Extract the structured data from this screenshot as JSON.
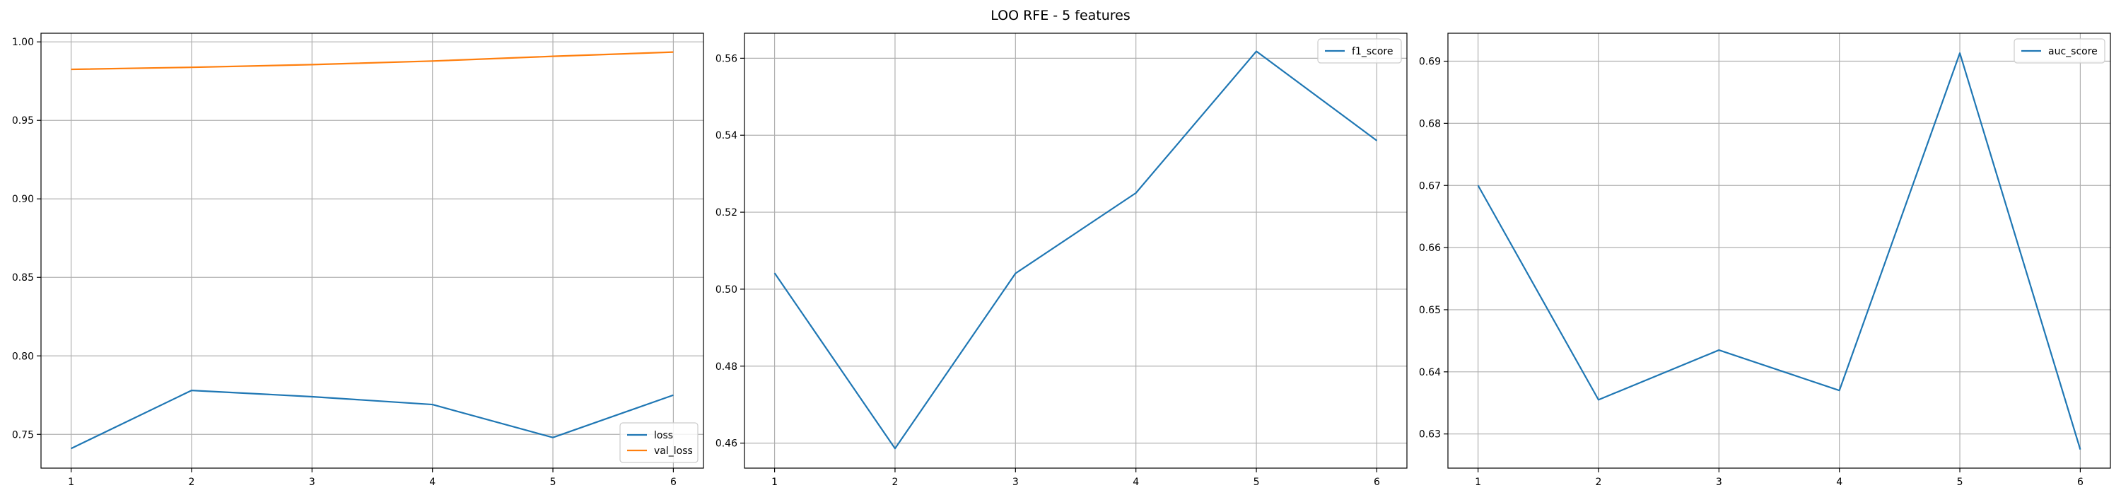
{
  "title": "LOO RFE - 5 features",
  "colors": {
    "blue": "#1f77b4",
    "orange": "#ff7f0e"
  },
  "chart_data": [
    {
      "type": "line",
      "x": [
        1,
        2,
        3,
        4,
        5,
        6
      ],
      "xticks": [
        "1",
        "2",
        "3",
        "4",
        "5",
        "6"
      ],
      "xlim": [
        0.75,
        6.25
      ],
      "ylim": [
        0.7285,
        1.0055
      ],
      "yticks": [
        "0.75",
        "0.80",
        "0.85",
        "0.90",
        "0.95",
        "1.00"
      ],
      "ytick_values": [
        0.75,
        0.8,
        0.85,
        0.9,
        0.95,
        1.0
      ],
      "grid": true,
      "legend_position": "lower-right",
      "series": [
        {
          "name": "loss",
          "color": "#1f77b4",
          "values": [
            0.741,
            0.778,
            0.774,
            0.769,
            0.748,
            0.775
          ]
        },
        {
          "name": "val_loss",
          "color": "#ff7f0e",
          "values": [
            0.9825,
            0.9838,
            0.9855,
            0.9878,
            0.9908,
            0.9935
          ]
        }
      ]
    },
    {
      "type": "line",
      "x": [
        1,
        2,
        3,
        4,
        5,
        6
      ],
      "xticks": [
        "1",
        "2",
        "3",
        "4",
        "5",
        "6"
      ],
      "xlim": [
        0.75,
        6.25
      ],
      "ylim": [
        0.4535,
        0.5665
      ],
      "yticks": [
        "0.46",
        "0.48",
        "0.50",
        "0.52",
        "0.54",
        "0.56"
      ],
      "ytick_values": [
        0.46,
        0.48,
        0.5,
        0.52,
        0.54,
        0.56
      ],
      "grid": true,
      "legend_position": "upper-right",
      "series": [
        {
          "name": "f1_score",
          "color": "#1f77b4",
          "values": [
            0.5042,
            0.4586,
            0.5041,
            0.525,
            0.5618,
            0.5386
          ]
        }
      ]
    },
    {
      "type": "line",
      "x": [
        1,
        2,
        3,
        4,
        5,
        6
      ],
      "xticks": [
        "1",
        "2",
        "3",
        "4",
        "5",
        "6"
      ],
      "xlim": [
        0.75,
        6.25
      ],
      "ylim": [
        0.6245,
        0.6945
      ],
      "yticks": [
        "0.63",
        "0.64",
        "0.65",
        "0.66",
        "0.67",
        "0.68",
        "0.69"
      ],
      "ytick_values": [
        0.63,
        0.64,
        0.65,
        0.66,
        0.67,
        0.68,
        0.69
      ],
      "grid": true,
      "legend_position": "upper-right",
      "series": [
        {
          "name": "auc_score",
          "color": "#1f77b4",
          "values": [
            0.67,
            0.6355,
            0.6435,
            0.637,
            0.6913,
            0.6275
          ]
        }
      ]
    }
  ]
}
